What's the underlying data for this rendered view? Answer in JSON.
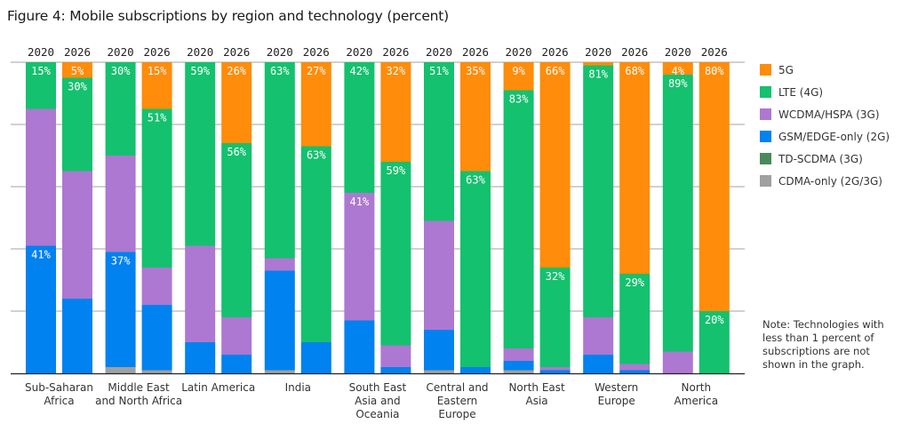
{
  "title": "Figure 4: Mobile subscriptions by region and technology (percent)",
  "note": "Note: Technologies with less than 1 percent of subscriptions are not shown in the graph.",
  "chart_data": {
    "type": "bar",
    "stacked": true,
    "title": "Figure 4: Mobile subscriptions by region and technology (percent)",
    "xlabel": "",
    "ylabel": "",
    "ylim": [
      0,
      100
    ],
    "grid": true,
    "legend_position": "right",
    "years": [
      "2020",
      "2026"
    ],
    "categories": [
      "Sub-Saharan\nAfrica",
      "Middle East\nand North Africa",
      "Latin America",
      "India",
      "South East\nAsia and\nOceania",
      "Central and\nEastern\nEurope",
      "North East\nAsia",
      "Western\nEurope",
      "North\nAmerica"
    ],
    "stack_order_bottom_to_top": [
      "CDMA-only (2G/3G)",
      "TD-SCDMA (3G)",
      "GSM/EDGE-only (2G)",
      "WCDMA/HSPA (3G)",
      "LTE (4G)",
      "5G"
    ],
    "series": [
      {
        "name": "5G",
        "color": "#ff8c0a",
        "values_2020": [
          0,
          0,
          0,
          0,
          0,
          0,
          9,
          1,
          4
        ],
        "values_2026": [
          5,
          15,
          26,
          27,
          32,
          35,
          66,
          68,
          80
        ]
      },
      {
        "name": "LTE (4G)",
        "color": "#14c16e",
        "values_2020": [
          15,
          30,
          59,
          63,
          42,
          51,
          83,
          81,
          89
        ],
        "values_2026": [
          30,
          51,
          56,
          63,
          59,
          63,
          32,
          29,
          20
        ]
      },
      {
        "name": "WCDMA/HSPA (3G)",
        "color": "#ad78d1",
        "values_2020": [
          44,
          31,
          31,
          4,
          41,
          35,
          4,
          12,
          7
        ],
        "values_2026": [
          41,
          12,
          12,
          0,
          7,
          0,
          1,
          2,
          0
        ]
      },
      {
        "name": "GSM/EDGE-only (2G)",
        "color": "#0082f0",
        "values_2020": [
          41,
          37,
          10,
          32,
          17,
          13,
          3,
          6,
          0
        ],
        "values_2026": [
          24,
          21,
          6,
          10,
          2,
          2,
          1,
          1,
          0
        ]
      },
      {
        "name": "TD-SCDMA (3G)",
        "color": "#4a8a5a",
        "values_2020": [
          0,
          0,
          0,
          0,
          0,
          0,
          0,
          0,
          0
        ],
        "values_2026": [
          0,
          0,
          0,
          0,
          0,
          0,
          0,
          0,
          0
        ]
      },
      {
        "name": "CDMA-only (2G/3G)",
        "color": "#a0a0a0",
        "values_2020": [
          0,
          2,
          0,
          1,
          0,
          1,
          1,
          0,
          0
        ],
        "values_2026": [
          0,
          1,
          0,
          0,
          0,
          0,
          0,
          0,
          0
        ]
      }
    ],
    "data_labels": [
      {
        "region": 0,
        "year": "2020",
        "series": "LTE (4G)",
        "text": "15%"
      },
      {
        "region": 0,
        "year": "2020",
        "series": "GSM/EDGE-only (2G)",
        "text": "41%"
      },
      {
        "region": 0,
        "year": "2026",
        "series": "5G",
        "text": "5%"
      },
      {
        "region": 0,
        "year": "2026",
        "series": "LTE (4G)",
        "text": "30%"
      },
      {
        "region": 1,
        "year": "2020",
        "series": "LTE (4G)",
        "text": "30%"
      },
      {
        "region": 1,
        "year": "2020",
        "series": "GSM/EDGE-only (2G)",
        "text": "37%"
      },
      {
        "region": 1,
        "year": "2026",
        "series": "5G",
        "text": "15%"
      },
      {
        "region": 1,
        "year": "2026",
        "series": "LTE (4G)",
        "text": "51%"
      },
      {
        "region": 2,
        "year": "2020",
        "series": "LTE (4G)",
        "text": "59%"
      },
      {
        "region": 2,
        "year": "2026",
        "series": "5G",
        "text": "26%"
      },
      {
        "region": 2,
        "year": "2026",
        "series": "LTE (4G)",
        "text": "56%"
      },
      {
        "region": 3,
        "year": "2020",
        "series": "LTE (4G)",
        "text": "63%"
      },
      {
        "region": 3,
        "year": "2026",
        "series": "5G",
        "text": "27%"
      },
      {
        "region": 3,
        "year": "2026",
        "series": "LTE (4G)",
        "text": "63%"
      },
      {
        "region": 4,
        "year": "2020",
        "series": "LTE (4G)",
        "text": "42%"
      },
      {
        "region": 4,
        "year": "2020",
        "series": "WCDMA/HSPA (3G)",
        "text": "41%"
      },
      {
        "region": 4,
        "year": "2026",
        "series": "5G",
        "text": "32%"
      },
      {
        "region": 4,
        "year": "2026",
        "series": "LTE (4G)",
        "text": "59%"
      },
      {
        "region": 5,
        "year": "2020",
        "series": "LTE (4G)",
        "text": "51%"
      },
      {
        "region": 5,
        "year": "2026",
        "series": "5G",
        "text": "35%"
      },
      {
        "region": 5,
        "year": "2026",
        "series": "LTE (4G)",
        "text": "63%"
      },
      {
        "region": 6,
        "year": "2020",
        "series": "5G",
        "text": "9%"
      },
      {
        "region": 6,
        "year": "2020",
        "series": "LTE (4G)",
        "text": "83%"
      },
      {
        "region": 6,
        "year": "2026",
        "series": "5G",
        "text": "66%"
      },
      {
        "region": 6,
        "year": "2026",
        "series": "LTE (4G)",
        "text": "32%"
      },
      {
        "region": 7,
        "year": "2020",
        "series": "LTE (4G)",
        "text": "81%"
      },
      {
        "region": 7,
        "year": "2026",
        "series": "5G",
        "text": "68%"
      },
      {
        "region": 7,
        "year": "2026",
        "series": "LTE (4G)",
        "text": "29%"
      },
      {
        "region": 8,
        "year": "2020",
        "series": "5G",
        "text": "4%"
      },
      {
        "region": 8,
        "year": "2020",
        "series": "LTE (4G)",
        "text": "89%"
      },
      {
        "region": 8,
        "year": "2026",
        "series": "5G",
        "text": "80%"
      },
      {
        "region": 8,
        "year": "2026",
        "series": "LTE (4G)",
        "text": "20%"
      }
    ]
  }
}
